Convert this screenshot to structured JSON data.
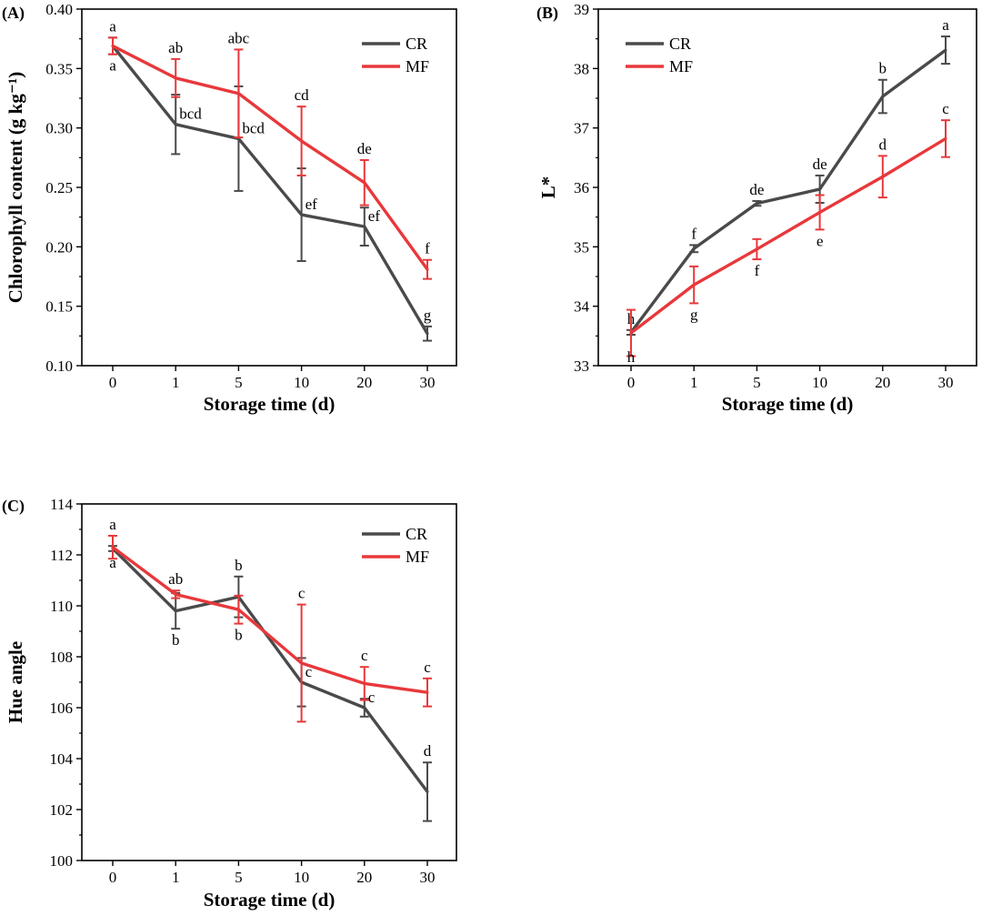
{
  "figure": {
    "colors": {
      "CR": "#4a4a4a",
      "MF": "#e8383b",
      "axis": "#000000",
      "background": "#ffffff"
    }
  },
  "chart_data": [
    {
      "panel": "(A)",
      "type": "line",
      "categories": [
        "0",
        "1",
        "5",
        "10",
        "20",
        "30"
      ],
      "xlabel": "Storage time (d)",
      "ylabel": "Chlorophyll content (g kg⁻¹)",
      "ylim": [
        0.1,
        0.4
      ],
      "yticks": [
        "0.10",
        "0.15",
        "0.20",
        "0.25",
        "0.30",
        "0.35",
        "0.40"
      ],
      "legend": {
        "position": "top-right",
        "entries": [
          "CR",
          "MF"
        ]
      },
      "series": [
        {
          "name": "CR",
          "color": "#4a4a4a",
          "values": [
            0.369,
            0.303,
            0.291,
            0.227,
            0.217,
            0.127
          ],
          "errors": [
            0.007,
            0.025,
            0.044,
            0.039,
            0.016,
            0.006
          ],
          "labels": [
            "a",
            "bcd",
            "bcd",
            "ef",
            "ef",
            "g"
          ],
          "label_side": [
            "below",
            "right",
            "right",
            "right",
            "right",
            "above"
          ]
        },
        {
          "name": "MF",
          "color": "#e8383b",
          "values": [
            0.369,
            0.342,
            0.329,
            0.289,
            0.254,
            0.181
          ],
          "errors": [
            0.007,
            0.016,
            0.037,
            0.029,
            0.019,
            0.008
          ],
          "labels": [
            "a",
            "ab",
            "abc",
            "cd",
            "de",
            "f"
          ],
          "label_side": [
            "above",
            "above",
            "above",
            "above",
            "above",
            "above"
          ]
        }
      ]
    },
    {
      "panel": "(B)",
      "type": "line",
      "categories": [
        "0",
        "1",
        "5",
        "10",
        "20",
        "30"
      ],
      "xlabel": "Storage time (d)",
      "ylabel": "L*",
      "ylim": [
        33,
        39
      ],
      "yticks": [
        "33",
        "34",
        "35",
        "36",
        "37",
        "38",
        "39"
      ],
      "legend": {
        "position": "top-left",
        "entries": [
          "CR",
          "MF"
        ]
      },
      "series": [
        {
          "name": "CR",
          "color": "#4a4a4a",
          "values": [
            33.56,
            34.97,
            35.73,
            35.97,
            37.53,
            38.31
          ],
          "errors": [
            0.04,
            0.06,
            0.04,
            0.23,
            0.28,
            0.23
          ],
          "labels": [
            "h",
            "f",
            "de",
            "de",
            "b",
            "a"
          ],
          "label_side": [
            "above",
            "above",
            "above",
            "above",
            "above",
            "above"
          ]
        },
        {
          "name": "MF",
          "color": "#e8383b",
          "values": [
            33.55,
            34.36,
            34.96,
            35.58,
            36.18,
            36.82
          ],
          "errors": [
            0.39,
            0.31,
            0.17,
            0.29,
            0.35,
            0.31
          ],
          "labels": [
            "h",
            "g",
            "f",
            "e",
            "d",
            "c"
          ],
          "label_side": [
            "below",
            "below",
            "below",
            "below",
            "above",
            "above"
          ]
        }
      ]
    },
    {
      "panel": "(C)",
      "type": "line",
      "categories": [
        "0",
        "1",
        "5",
        "10",
        "20",
        "30"
      ],
      "xlabel": "Storage time (d)",
      "ylabel": "Hue angle",
      "ylim": [
        100,
        114
      ],
      "yticks": [
        "100",
        "102",
        "104",
        "106",
        "108",
        "110",
        "112",
        "114"
      ],
      "legend": {
        "position": "top-right",
        "entries": [
          "CR",
          "MF"
        ]
      },
      "series": [
        {
          "name": "CR",
          "color": "#4a4a4a",
          "values": [
            112.25,
            109.8,
            110.35,
            107.0,
            106.0,
            102.7
          ],
          "errors": [
            0.1,
            0.7,
            0.8,
            0.95,
            0.35,
            1.15
          ],
          "labels": [
            "a",
            "b",
            "b",
            "c",
            "c",
            "d"
          ],
          "label_side": [
            "below",
            "below",
            "above",
            "right",
            "right",
            "above"
          ]
        },
        {
          "name": "MF",
          "color": "#e8383b",
          "values": [
            112.3,
            110.45,
            109.85,
            107.75,
            106.95,
            106.6
          ],
          "errors": [
            0.45,
            0.15,
            0.55,
            2.3,
            0.65,
            0.55
          ],
          "labels": [
            "a",
            "ab",
            "b",
            "c",
            "c",
            "c"
          ],
          "label_side": [
            "above",
            "above",
            "below",
            "above",
            "above",
            "above"
          ]
        }
      ]
    }
  ]
}
